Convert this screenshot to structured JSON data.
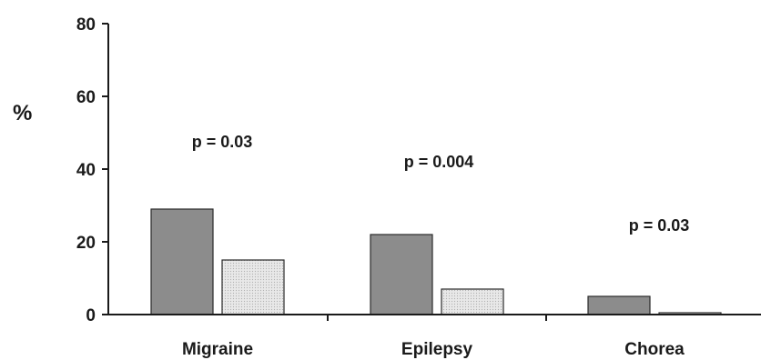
{
  "chart_data": {
    "type": "bar",
    "ylabel": "%",
    "xlabel": "",
    "ylim": [
      0,
      80
    ],
    "yticks": [
      "0",
      "20",
      "40",
      "60",
      "80"
    ],
    "categories": [
      "Migraine",
      "Epilepsy",
      "Chorea"
    ],
    "series": [
      {
        "values": [
          29,
          22,
          5
        ],
        "color": "#8c8c8c"
      },
      {
        "values": [
          15,
          7,
          0.5
        ],
        "color": "#e4e4e4"
      }
    ],
    "annotations": [
      "p = 0.03",
      "p = 0.004",
      "p = 0.03"
    ],
    "grid": false,
    "legend": "none"
  }
}
